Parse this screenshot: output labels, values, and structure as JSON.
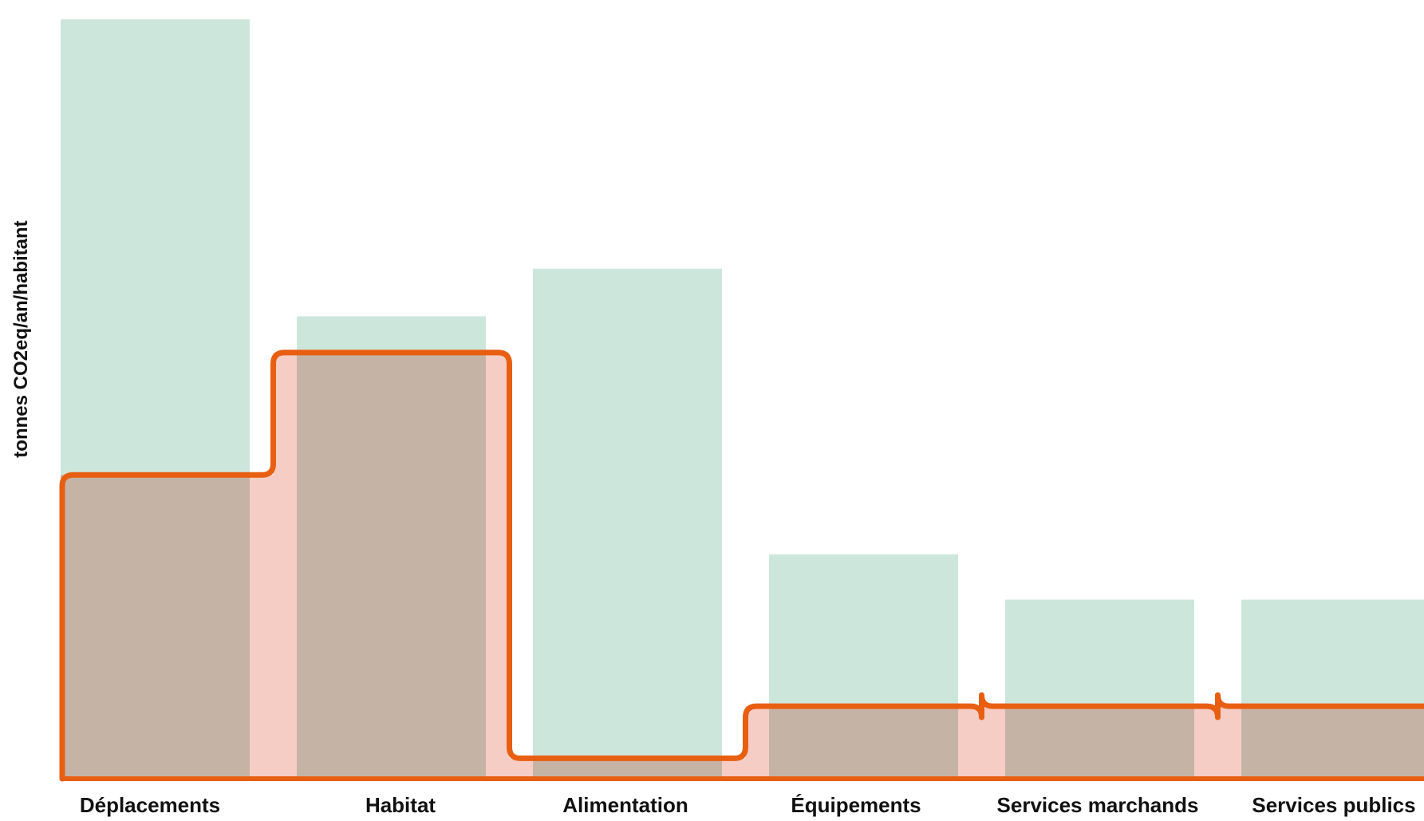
{
  "chart_data": {
    "type": "bar",
    "title": "",
    "xlabel": "",
    "ylabel": "tonnes CO2eq/an/habitant",
    "categories": [
      "Déplacements",
      "Habitat",
      "Alimentation",
      "Équipements",
      "Services marchands",
      "Services publics"
    ],
    "series": [
      {
        "values": [
          3.35,
          2.04,
          2.25,
          0.99,
          0.79,
          0.79
        ]
      },
      {
        "values": [
          1.34,
          1.88,
          0.09,
          0.32,
          0.32,
          0.32
        ]
      }
    ],
    "ylim": [
      0,
      3.4
    ],
    "grid": false,
    "legend": "none",
    "colors": {
      "reference_bars": "#cde6dc",
      "area_fill": "#f4c4bb",
      "overlap": "#c5b4a6",
      "outline": "#e85f12",
      "text": "#111111"
    }
  }
}
